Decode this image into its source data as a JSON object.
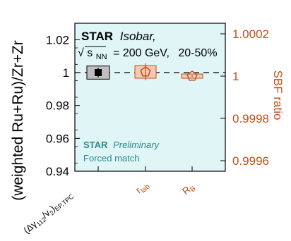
{
  "chart_data": {
    "type": "scatter",
    "ylabel": "(weighted Ru+Ru)/Zr+Zr",
    "ylabel_right": "SBF ratio",
    "ylim": [
      0.94,
      1.03
    ],
    "ylim_right": [
      0.99955,
      1.00025
    ],
    "left_ticks": [
      0.94,
      0.96,
      0.98,
      1,
      1.02
    ],
    "left_tick_labels": [
      "0.94",
      "0.96",
      "0.98",
      "1",
      "1.02"
    ],
    "right_ticks": [
      0.9996,
      0.9998,
      1,
      1.0002
    ],
    "right_tick_labels": [
      "0.9996",
      "0.9998",
      "1",
      "1.0002"
    ],
    "reference_line": 1,
    "categories": [
      {
        "label_main": "(Δγ",
        "label_sub1": "112",
        "label_mid": "/v",
        "label_sub2": "2",
        "label_end": ")",
        "label_sub3": "EP,TPC",
        "axis": "left"
      },
      {
        "label_main": "r",
        "label_sub1": "lab",
        "axis": "right"
      },
      {
        "label_main": "R",
        "label_sub1": "B",
        "axis": "right"
      }
    ],
    "series": [
      {
        "category": 0,
        "axis": "left",
        "value": 1.0,
        "stat_err": 0.003,
        "sys_err": 0.004,
        "marker": "square"
      },
      {
        "category": 1,
        "axis": "right",
        "value": 1.00002,
        "stat_err": 4e-05,
        "sys_err": 3e-05,
        "marker": "pentagon"
      },
      {
        "category": 2,
        "axis": "right",
        "value": 1.0,
        "stat_err": 5e-06,
        "sys_err": 1e-05,
        "marker": "pentagon"
      }
    ],
    "legend_position": "top-left",
    "legend": {
      "title_bold": "STAR",
      "title_italic": "Isobar,",
      "sqrt_sym": "√",
      "sqrt_arg": "s",
      "sqrt_sub": "NN",
      "energy_text": "= 200 GeV,",
      "centrality": "20-50%"
    },
    "annotation": {
      "bold": "STAR",
      "italic": "Preliminary",
      "line2": "Forced match"
    }
  },
  "colors": {
    "plot_bg": "#dff5f6",
    "frame": "#000000",
    "accent": "#c0501a",
    "sys_fill_left": "#bfbfbf",
    "sys_fill_right": "#f2c9b3",
    "annotation_text": "#2e8c8c"
  }
}
